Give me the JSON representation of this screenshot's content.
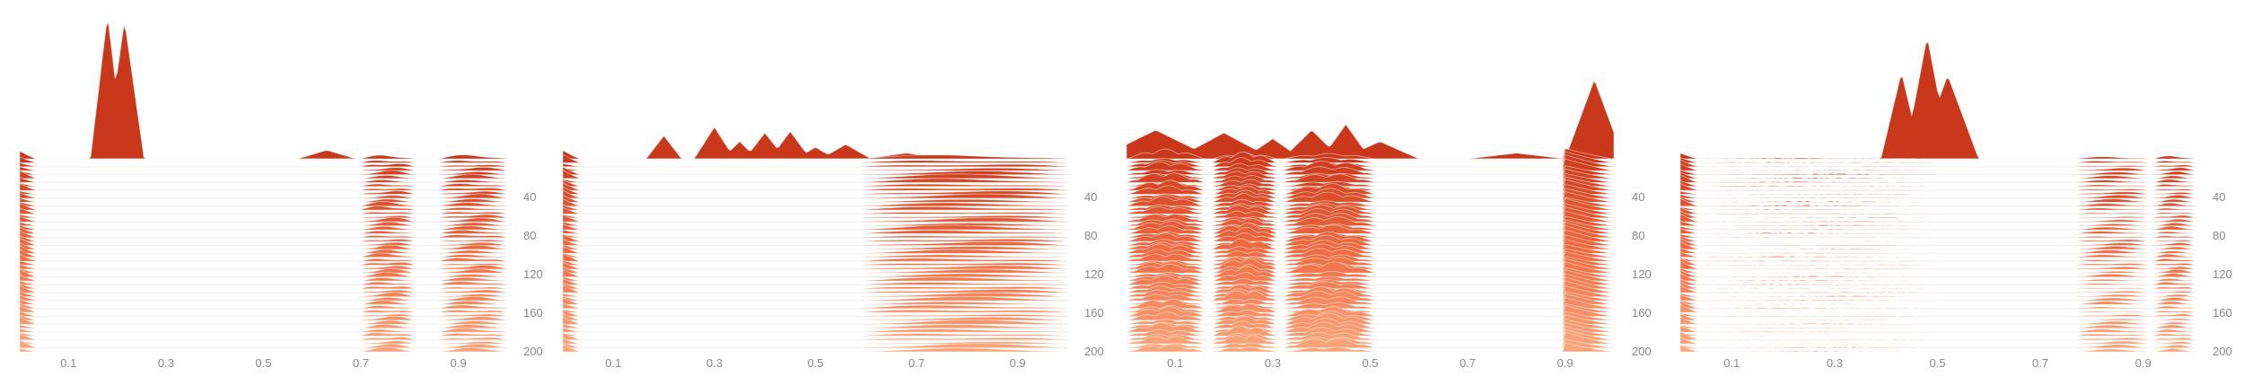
{
  "chart_data": [
    {
      "type": "ridgeline",
      "x_ticks": [
        "0.1",
        "0.3",
        "0.5",
        "0.7",
        "0.9"
      ],
      "y_ticks": [
        "40",
        "80",
        "120",
        "160",
        "200"
      ],
      "xlim": [
        0.0,
        1.0
      ],
      "ylim": [
        0,
        200
      ],
      "rows": 50,
      "bands": [
        {
          "x0": 0.0,
          "x1": 0.035,
          "amp": [
            1.0,
            0.35
          ],
          "decay": true
        },
        {
          "x0": 0.7,
          "x1": 0.81,
          "amp": [
            0.35,
            0.6
          ]
        },
        {
          "x0": 0.86,
          "x1": 1.0,
          "amp": [
            0.3,
            0.55
          ]
        }
      ],
      "top_peaks": [
        {
          "x": 0.18,
          "h": 1.0,
          "w": 0.035
        },
        {
          "x": 0.215,
          "h": 0.96,
          "w": 0.04
        },
        {
          "x": 0.63,
          "h": 0.06,
          "w": 0.06
        }
      ]
    },
    {
      "type": "ridgeline",
      "x_ticks": [
        "0.1",
        "0.3",
        "0.5",
        "0.7",
        "0.9"
      ],
      "y_ticks": [
        "40",
        "80",
        "120",
        "160",
        "200"
      ],
      "xlim": [
        0.0,
        1.0
      ],
      "ylim": [
        0,
        200
      ],
      "rows": 50,
      "bands": [
        {
          "x0": 0.0,
          "x1": 0.035,
          "amp": [
            1.0,
            0.35
          ],
          "decay": true
        },
        {
          "x0": 0.59,
          "x1": 1.0,
          "amp": [
            0.3,
            0.55
          ]
        }
      ],
      "top_peaks": [
        {
          "x": 0.2,
          "h": 0.16,
          "w": 0.035
        },
        {
          "x": 0.3,
          "h": 0.22,
          "w": 0.04
        },
        {
          "x": 0.35,
          "h": 0.12,
          "w": 0.035
        },
        {
          "x": 0.4,
          "h": 0.18,
          "w": 0.04
        },
        {
          "x": 0.45,
          "h": 0.19,
          "w": 0.04
        },
        {
          "x": 0.5,
          "h": 0.08,
          "w": 0.04
        },
        {
          "x": 0.56,
          "h": 0.1,
          "w": 0.05
        },
        {
          "x": 0.68,
          "h": 0.04,
          "w": 0.08
        }
      ]
    },
    {
      "type": "ridgeline",
      "x_ticks": [
        "0.1",
        "0.3",
        "0.5",
        "0.7",
        "0.9"
      ],
      "y_ticks": [
        "40",
        "80",
        "120",
        "160",
        "200"
      ],
      "xlim": [
        0.0,
        1.0
      ],
      "ylim": [
        0,
        200
      ],
      "rows": 50,
      "bands": [
        {
          "x0": 0.0,
          "x1": 0.16,
          "amp": [
            0.45,
            1.2
          ],
          "wave": true
        },
        {
          "x0": 0.175,
          "x1": 0.31,
          "amp": [
            0.5,
            1.3
          ],
          "wave": true
        },
        {
          "x0": 0.32,
          "x1": 0.51,
          "amp": [
            0.5,
            1.3
          ],
          "wave": true
        },
        {
          "x0": 0.9,
          "x1": 1.0,
          "amp": [
            1.0,
            1.4
          ],
          "decay": true
        }
      ],
      "top_peaks": [
        {
          "x": 0.06,
          "h": 0.2,
          "w": 0.12
        },
        {
          "x": 0.2,
          "h": 0.18,
          "w": 0.1
        },
        {
          "x": 0.3,
          "h": 0.14,
          "w": 0.06
        },
        {
          "x": 0.38,
          "h": 0.2,
          "w": 0.06
        },
        {
          "x": 0.45,
          "h": 0.24,
          "w": 0.05
        },
        {
          "x": 0.52,
          "h": 0.12,
          "w": 0.08
        },
        {
          "x": 0.8,
          "h": 0.04,
          "w": 0.1
        },
        {
          "x": 0.96,
          "h": 0.55,
          "w": 0.06
        }
      ]
    },
    {
      "type": "ridgeline",
      "x_ticks": [
        "0.1",
        "0.3",
        "0.5",
        "0.7",
        "0.9"
      ],
      "y_ticks": [
        "40",
        "80",
        "120",
        "160",
        "200"
      ],
      "xlim": [
        0.0,
        1.0
      ],
      "ylim": [
        0,
        200
      ],
      "rows": 50,
      "bands": [
        {
          "x0": 0.0,
          "x1": 0.035,
          "amp": [
            1.0,
            0.35
          ],
          "decay": true
        },
        {
          "x0": 0.04,
          "x1": 0.5,
          "amp": [
            0.05,
            0.15
          ],
          "faint": true
        },
        {
          "x0": 0.77,
          "x1": 0.91,
          "amp": [
            0.2,
            0.4
          ]
        },
        {
          "x0": 0.92,
          "x1": 1.0,
          "amp": [
            0.25,
            0.45
          ]
        }
      ],
      "top_peaks": [
        {
          "x": 0.43,
          "h": 0.6,
          "w": 0.04
        },
        {
          "x": 0.48,
          "h": 0.85,
          "w": 0.045
        },
        {
          "x": 0.52,
          "h": 0.58,
          "w": 0.06
        }
      ]
    }
  ],
  "colors": {
    "top": "#c9381a",
    "mid": "#ef6c43",
    "bottom": "#fca57a",
    "tick_text": "#888888",
    "grid": "#e8e8e8"
  }
}
